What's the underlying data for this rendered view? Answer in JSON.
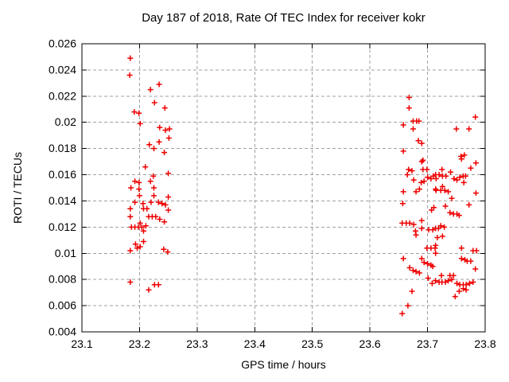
{
  "figure": {
    "title": "Day 187 of 2018, Rate Of TEC Index for receiver kokr",
    "xlabel": "GPS time / hours",
    "ylabel": "ROTI / TECUs"
  },
  "colors": {
    "background": "#ffffff",
    "axis": "#000000",
    "grid": "#a0a0a0",
    "marker": "#ee0000",
    "text": "#000000"
  },
  "chart_data": {
    "type": "scatter",
    "title": "Day 187 of 2018, Rate Of TEC Index for receiver kokr",
    "xlabel": "GPS time / hours",
    "ylabel": "ROTI / TECUs",
    "xlim": [
      23.1,
      23.8
    ],
    "ylim": [
      0.004,
      0.026
    ],
    "grid": true,
    "legend_position": "none",
    "marker": {
      "shape": "plus",
      "color": "#ee0000",
      "size": 7
    },
    "xticks": {
      "values": [
        23.1,
        23.2,
        23.3,
        23.4,
        23.5,
        23.6,
        23.7,
        23.8
      ],
      "labels": [
        "23.1",
        "23.2",
        "23.3",
        "23.4",
        "23.5",
        "23.6",
        "23.7",
        "23.8"
      ]
    },
    "yticks": {
      "values": [
        0.004,
        0.006,
        0.008,
        0.01,
        0.012,
        0.014,
        0.016,
        0.018,
        0.02,
        0.022,
        0.024,
        0.026
      ],
      "labels": [
        "0.004",
        "0.006",
        "0.008",
        "0.01",
        "0.012",
        "0.014",
        "0.016",
        "0.018",
        "0.02",
        "0.022",
        "0.024",
        "0.026"
      ]
    },
    "series": [
      {
        "name": "ROTI",
        "points": [
          [
            23.184,
            0.0249
          ],
          [
            23.183,
            0.0236
          ],
          [
            23.234,
            0.0229
          ],
          [
            23.219,
            0.0225
          ],
          [
            23.226,
            0.0215
          ],
          [
            23.244,
            0.0211
          ],
          [
            23.191,
            0.0208
          ],
          [
            23.199,
            0.0207
          ],
          [
            23.201,
            0.0199
          ],
          [
            23.235,
            0.0196
          ],
          [
            23.245,
            0.0194
          ],
          [
            23.252,
            0.0195
          ],
          [
            23.251,
            0.0188
          ],
          [
            23.217,
            0.0183
          ],
          [
            23.225,
            0.018
          ],
          [
            23.234,
            0.0185
          ],
          [
            23.243,
            0.0177
          ],
          [
            23.21,
            0.0166
          ],
          [
            23.224,
            0.0159
          ],
          [
            23.25,
            0.0161
          ],
          [
            23.192,
            0.0155
          ],
          [
            23.199,
            0.0154
          ],
          [
            23.219,
            0.0155
          ],
          [
            23.185,
            0.015
          ],
          [
            23.199,
            0.0149
          ],
          [
            23.225,
            0.015
          ],
          [
            23.2,
            0.0144
          ],
          [
            23.225,
            0.0144
          ],
          [
            23.25,
            0.0143
          ],
          [
            23.192,
            0.0139
          ],
          [
            23.206,
            0.0138
          ],
          [
            23.22,
            0.0139
          ],
          [
            23.233,
            0.0139
          ],
          [
            23.239,
            0.0138
          ],
          [
            23.245,
            0.0137
          ],
          [
            23.184,
            0.0134
          ],
          [
            23.207,
            0.0134
          ],
          [
            23.213,
            0.0134
          ],
          [
            23.25,
            0.0133
          ],
          [
            23.184,
            0.0128
          ],
          [
            23.216,
            0.0128
          ],
          [
            23.222,
            0.0128
          ],
          [
            23.228,
            0.0128
          ],
          [
            23.235,
            0.0126
          ],
          [
            23.243,
            0.0124
          ],
          [
            23.201,
            0.0123
          ],
          [
            23.211,
            0.0121
          ],
          [
            23.186,
            0.012
          ],
          [
            23.192,
            0.012
          ],
          [
            23.198,
            0.012
          ],
          [
            23.204,
            0.012
          ],
          [
            23.207,
            0.0117
          ],
          [
            23.193,
            0.0107
          ],
          [
            23.201,
            0.0105
          ],
          [
            23.207,
            0.0109
          ],
          [
            23.196,
            0.0104
          ],
          [
            23.184,
            0.0102
          ],
          [
            23.242,
            0.0103
          ],
          [
            23.249,
            0.0101
          ],
          [
            23.184,
            0.0078
          ],
          [
            23.226,
            0.0076
          ],
          [
            23.233,
            0.0076
          ],
          [
            23.216,
            0.0072
          ],
          [
            23.668,
            0.0219
          ],
          [
            23.668,
            0.0211
          ],
          [
            23.658,
            0.0198
          ],
          [
            23.675,
            0.0201
          ],
          [
            23.681,
            0.0201
          ],
          [
            23.685,
            0.0201
          ],
          [
            23.675,
            0.0195
          ],
          [
            23.684,
            0.0186
          ],
          [
            23.69,
            0.0184
          ],
          [
            23.658,
            0.0178
          ],
          [
            23.692,
            0.0171
          ],
          [
            23.783,
            0.0204
          ],
          [
            23.75,
            0.0195
          ],
          [
            23.772,
            0.0195
          ],
          [
            23.758,
            0.0174
          ],
          [
            23.764,
            0.0175
          ],
          [
            23.784,
            0.0169
          ],
          [
            23.69,
            0.017
          ],
          [
            23.667,
            0.0164
          ],
          [
            23.673,
            0.0163
          ],
          [
            23.692,
            0.0164
          ],
          [
            23.699,
            0.0164
          ],
          [
            23.665,
            0.016
          ],
          [
            23.676,
            0.0156
          ],
          [
            23.689,
            0.0154
          ],
          [
            23.694,
            0.0155
          ],
          [
            23.7,
            0.0158
          ],
          [
            23.706,
            0.0157
          ],
          [
            23.71,
            0.0159
          ],
          [
            23.715,
            0.0157
          ],
          [
            23.658,
            0.0147
          ],
          [
            23.68,
            0.0147
          ],
          [
            23.686,
            0.0149
          ],
          [
            23.715,
            0.0148
          ],
          [
            23.657,
            0.0138
          ],
          [
            23.707,
            0.0133
          ],
          [
            23.69,
            0.0125
          ],
          [
            23.656,
            0.0123
          ],
          [
            23.663,
            0.0123
          ],
          [
            23.669,
            0.0123
          ],
          [
            23.676,
            0.0122
          ],
          [
            23.679,
            0.0117
          ],
          [
            23.69,
            0.0119
          ],
          [
            23.702,
            0.0118
          ],
          [
            23.709,
            0.0118
          ],
          [
            23.725,
            0.0164
          ],
          [
            23.775,
            0.0165
          ],
          [
            23.714,
            0.016
          ],
          [
            23.72,
            0.016
          ],
          [
            23.726,
            0.0159
          ],
          [
            23.732,
            0.0159
          ],
          [
            23.74,
            0.0162
          ],
          [
            23.746,
            0.0157
          ],
          [
            23.751,
            0.0156
          ],
          [
            23.756,
            0.0158
          ],
          [
            23.762,
            0.0159
          ],
          [
            23.766,
            0.0159
          ],
          [
            23.763,
            0.0154
          ],
          [
            23.714,
            0.0149
          ],
          [
            23.723,
            0.0148
          ],
          [
            23.73,
            0.0148
          ],
          [
            23.726,
            0.0151
          ],
          [
            23.736,
            0.0147
          ],
          [
            23.784,
            0.0146
          ],
          [
            23.742,
            0.0142
          ],
          [
            23.772,
            0.0137
          ],
          [
            23.711,
            0.0135
          ],
          [
            23.731,
            0.0136
          ],
          [
            23.739,
            0.0131
          ],
          [
            23.745,
            0.013
          ],
          [
            23.751,
            0.013
          ],
          [
            23.755,
            0.0129
          ],
          [
            23.723,
            0.0121
          ],
          [
            23.729,
            0.012
          ],
          [
            23.714,
            0.0119
          ],
          [
            23.719,
            0.0119
          ],
          [
            23.68,
            0.0114
          ],
          [
            23.717,
            0.0112
          ],
          [
            23.726,
            0.0113
          ],
          [
            23.699,
            0.0104
          ],
          [
            23.706,
            0.0104
          ],
          [
            23.713,
            0.0104
          ],
          [
            23.658,
            0.0096
          ],
          [
            23.69,
            0.0096
          ],
          [
            23.669,
            0.0089
          ],
          [
            23.675,
            0.0087
          ],
          [
            23.68,
            0.0086
          ],
          [
            23.686,
            0.0085
          ],
          [
            23.694,
            0.0093
          ],
          [
            23.7,
            0.0092
          ],
          [
            23.706,
            0.0091
          ],
          [
            23.709,
            0.009
          ],
          [
            23.701,
            0.0081
          ],
          [
            23.708,
            0.0077
          ],
          [
            23.673,
            0.0071
          ],
          [
            23.666,
            0.006
          ],
          [
            23.656,
            0.0054
          ],
          [
            23.714,
            0.0106
          ],
          [
            23.714,
            0.01
          ],
          [
            23.759,
            0.0104
          ],
          [
            23.779,
            0.0102
          ],
          [
            23.785,
            0.0102
          ],
          [
            23.759,
            0.0172
          ],
          [
            23.759,
            0.0096
          ],
          [
            23.765,
            0.0095
          ],
          [
            23.769,
            0.0094
          ],
          [
            23.775,
            0.0094
          ],
          [
            23.783,
            0.0088
          ],
          [
            23.724,
            0.0083
          ],
          [
            23.739,
            0.0083
          ],
          [
            23.745,
            0.0083
          ],
          [
            23.714,
            0.0079
          ],
          [
            23.72,
            0.0078
          ],
          [
            23.725,
            0.0078
          ],
          [
            23.731,
            0.0078
          ],
          [
            23.736,
            0.0079
          ],
          [
            23.742,
            0.008
          ],
          [
            23.751,
            0.0077
          ],
          [
            23.756,
            0.0076
          ],
          [
            23.762,
            0.0076
          ],
          [
            23.767,
            0.0076
          ],
          [
            23.773,
            0.0077
          ],
          [
            23.779,
            0.0078
          ],
          [
            23.762,
            0.0073
          ],
          [
            23.767,
            0.0072
          ],
          [
            23.755,
            0.0071
          ],
          [
            23.748,
            0.0067
          ]
        ]
      }
    ]
  }
}
